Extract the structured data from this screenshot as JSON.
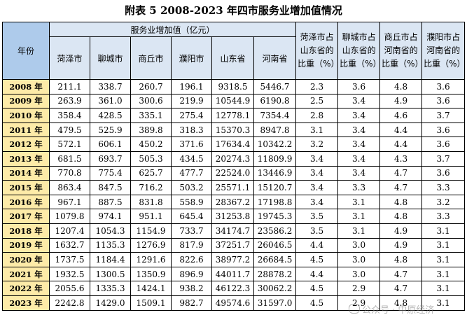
{
  "title": "附表 5   2008-2023 年四市服务业增加值情况",
  "header": {
    "year": "年份",
    "group": "服务业增加值（亿元）",
    "cities": [
      "菏泽市",
      "聊城市",
      "商丘市",
      "濮阳市",
      "山东省",
      "河南省"
    ],
    "ratios": [
      "菏泽市占山东省的比重（%）",
      "聊城市占山东省的比重（%）",
      "商丘市占河南省的比重（%）",
      "濮阳市占河南省的比重（%）"
    ]
  },
  "rows": [
    {
      "year": "2008 年",
      "values": [
        "211.1",
        "338.7",
        "260.7",
        "196.1",
        "9318.5",
        "5446.7",
        "2.3",
        "3.6",
        "4.8",
        "3.6"
      ]
    },
    {
      "year": "2009 年",
      "values": [
        "263.9",
        "361.0",
        "300.6",
        "219.9",
        "10544.9",
        "6190.8",
        "2.5",
        "3.4",
        "4.9",
        "3.6"
      ]
    },
    {
      "year": "2010 年",
      "values": [
        "358.4",
        "428.5",
        "335.1",
        "275.4",
        "12778.1",
        "7354.4",
        "2.8",
        "3.4",
        "4.6",
        "3.7"
      ]
    },
    {
      "year": "2011 年",
      "values": [
        "479.5",
        "525.9",
        "389.8",
        "318.3",
        "15370.3",
        "8947.8",
        "3.1",
        "3.4",
        "4.4",
        "3.6"
      ]
    },
    {
      "year": "2012 年",
      "values": [
        "572.1",
        "606.1",
        "450.2",
        "371.6",
        "17634.4",
        "10342.2",
        "3.2",
        "3.4",
        "4.4",
        "3.6"
      ]
    },
    {
      "year": "2013 年",
      "values": [
        "681.5",
        "693.7",
        "505.3",
        "434.5",
        "20274.3",
        "11809.9",
        "3.4",
        "3.4",
        "4.3",
        "3.7"
      ]
    },
    {
      "year": "2014 年",
      "values": [
        "770.8",
        "775.4",
        "625.7",
        "477.7",
        "22524.0",
        "13446.9",
        "3.4",
        "3.4",
        "4.7",
        "3.6"
      ]
    },
    {
      "year": "2015 年",
      "values": [
        "863.4",
        "847.5",
        "716.2",
        "503.2",
        "25571.1",
        "15120.7",
        "3.4",
        "3.3",
        "4.7",
        "3.3"
      ]
    },
    {
      "year": "2016 年",
      "values": [
        "967.1",
        "887.5",
        "831.8",
        "558.9",
        "28367.2",
        "17198.8",
        "3.4",
        "3.1",
        "4.8",
        "3.2"
      ]
    },
    {
      "year": "2017 年",
      "values": [
        "1079.8",
        "974.1",
        "951.1",
        "645.4",
        "31253.8",
        "19745.3",
        "3.5",
        "3.1",
        "4.8",
        "3.3"
      ]
    },
    {
      "year": "2018 年",
      "values": [
        "1207.4",
        "1054.3",
        "1154.9",
        "733.7",
        "34174.7",
        "23586.2",
        "3.5",
        "3.1",
        "4.9",
        "3.1"
      ]
    },
    {
      "year": "2019 年",
      "values": [
        "1632.7",
        "1135.3",
        "1276.9",
        "817.9",
        "37251.7",
        "26046.5",
        "4.4",
        "3.0",
        "4.9",
        "3.1"
      ]
    },
    {
      "year": "2020 年",
      "values": [
        "1737.5",
        "1184.4",
        "1291.6",
        "822.6",
        "38977.2",
        "26684.5",
        "4.5",
        "3.0",
        "4.8",
        "3.1"
      ]
    },
    {
      "year": "2021 年",
      "values": [
        "1932.5",
        "1300.5",
        "1350.9",
        "896.9",
        "44011.7",
        "28878.2",
        "4.4",
        "3.0",
        "4.7",
        "3.1"
      ]
    },
    {
      "year": "2022 年",
      "values": [
        "2055.6",
        "1335.3",
        "1424.1",
        "938.2",
        "46122.3",
        "30062.2",
        "4.5",
        "2.9",
        "4.7",
        "3.1"
      ]
    },
    {
      "year": "2023 年",
      "values": [
        "2242.8",
        "1429.0",
        "1509.1",
        "982.7",
        "49574.6",
        "31597.0",
        "4.5",
        "2.9",
        "4.8",
        "3.1"
      ]
    }
  ],
  "watermark": "公众号 · 中原经济"
}
